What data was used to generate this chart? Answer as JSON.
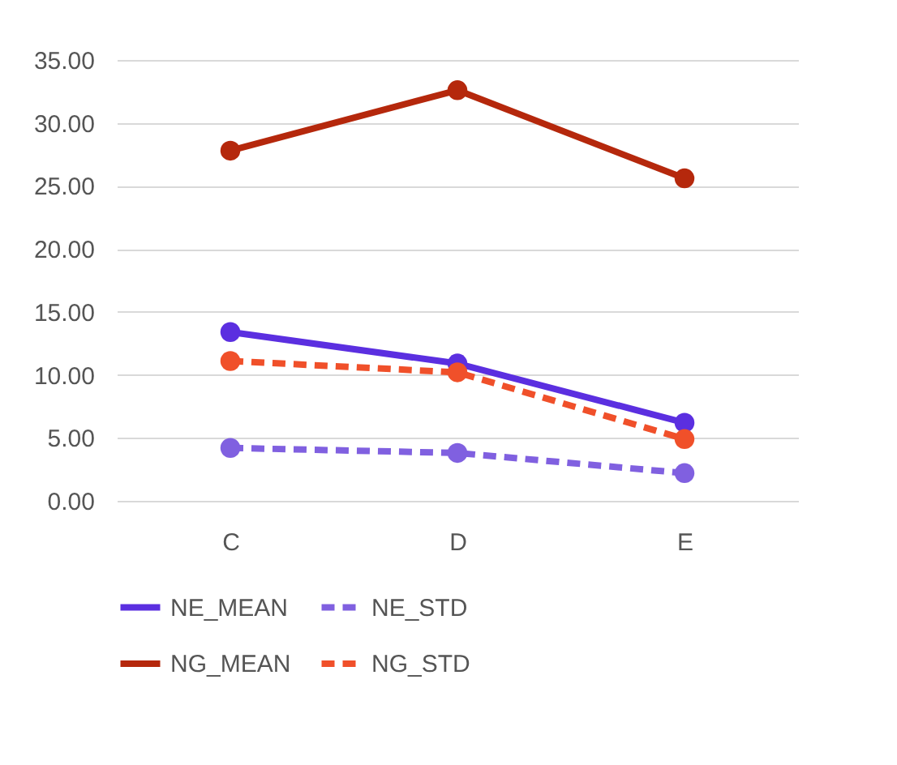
{
  "chart_data": {
    "type": "line",
    "categories": [
      "C",
      "D",
      "E"
    ],
    "series": [
      {
        "name": "NE_MEAN",
        "color": "#5b2fe0",
        "values": [
          13.4,
          10.9,
          6.2
        ],
        "line_style": "solid"
      },
      {
        "name": "NE_STD",
        "color": "#8060e0",
        "values": [
          4.2,
          3.8,
          2.2
        ],
        "line_style": "dashed"
      },
      {
        "name": "NG_MEAN",
        "color": "#b5280c",
        "values": [
          27.8,
          32.6,
          25.6
        ],
        "line_style": "solid"
      },
      {
        "name": "NG_STD",
        "color": "#f0502a",
        "values": [
          11.1,
          10.2,
          4.9
        ],
        "line_style": "dashed"
      }
    ],
    "ylim": [
      0,
      35
    ],
    "yticks": [
      {
        "value": 0,
        "label": "0.00"
      },
      {
        "value": 5,
        "label": "5.00"
      },
      {
        "value": 10,
        "label": "10.00"
      },
      {
        "value": 15,
        "label": "15.00"
      },
      {
        "value": 20,
        "label": "20.00"
      },
      {
        "value": 25,
        "label": "25.00"
      },
      {
        "value": 30,
        "label": "30.00"
      },
      {
        "value": 35,
        "label": "35.00"
      }
    ],
    "grid": "y",
    "legend": "bottom",
    "marker": "circle"
  }
}
